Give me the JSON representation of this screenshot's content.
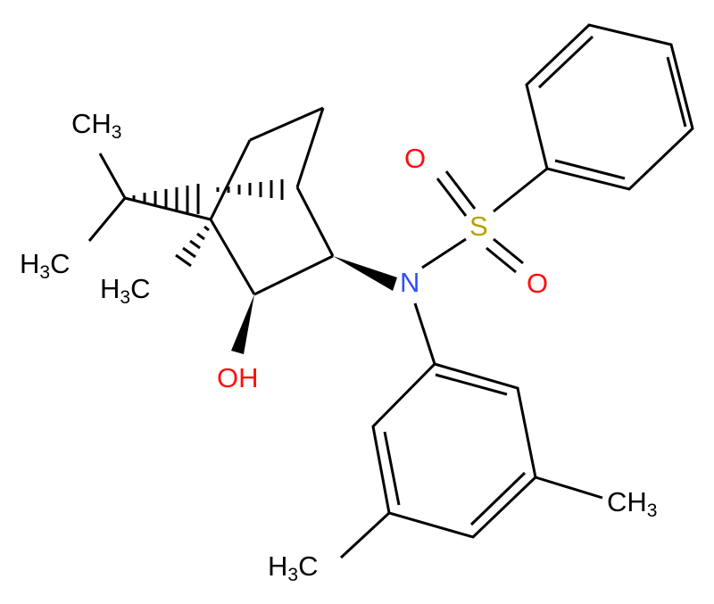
{
  "atoms": {
    "me7a": {
      "text": "CH",
      "sub": "3"
    },
    "me7b": {
      "pre": "H",
      "sub": "3",
      "text": "C"
    },
    "me1": {
      "pre": "H",
      "sub": "3",
      "text": "C"
    },
    "oh": {
      "text": "OH"
    },
    "n": {
      "text": "N"
    },
    "s": {
      "text": "S"
    },
    "o1": {
      "text": "O"
    },
    "o2": {
      "text": "O"
    },
    "me_ar1": {
      "text": "CH",
      "sub": "3"
    },
    "me_ar2": {
      "pre": "H",
      "sub": "3",
      "text": "C"
    }
  }
}
